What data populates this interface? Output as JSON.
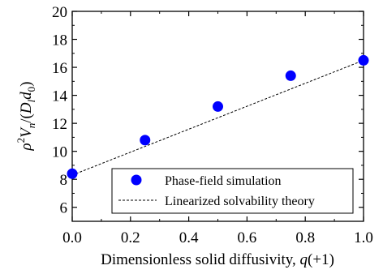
{
  "chart_data": {
    "type": "scatter",
    "xlabel": "Dimensionless solid diffusivity, q(+1)",
    "ylabel": "ρ²Vₙ/(D_l d₀)",
    "xlim": [
      0.0,
      1.0
    ],
    "ylim": [
      5,
      20
    ],
    "x_ticks": [
      "0.0",
      "0.2",
      "0.4",
      "0.6",
      "0.8",
      "1.0"
    ],
    "y_ticks": [
      "6",
      "8",
      "10",
      "12",
      "14",
      "16",
      "18",
      "20"
    ],
    "grid": false,
    "legend_position": "bottom-right",
    "series": [
      {
        "name": "Phase-field simulation",
        "kind": "scatter",
        "color": "#0000ff",
        "points": [
          {
            "x": 0.0,
            "y": 8.4
          },
          {
            "x": 0.25,
            "y": 10.8
          },
          {
            "x": 0.5,
            "y": 13.2
          },
          {
            "x": 0.75,
            "y": 15.4
          },
          {
            "x": 1.0,
            "y": 16.5
          }
        ]
      },
      {
        "name": "Linearized solvability theory",
        "kind": "line",
        "style": "dashed",
        "color": "#000000",
        "points": [
          {
            "x": 0.0,
            "y": 8.3
          },
          {
            "x": 1.0,
            "y": 16.5
          }
        ]
      }
    ]
  }
}
